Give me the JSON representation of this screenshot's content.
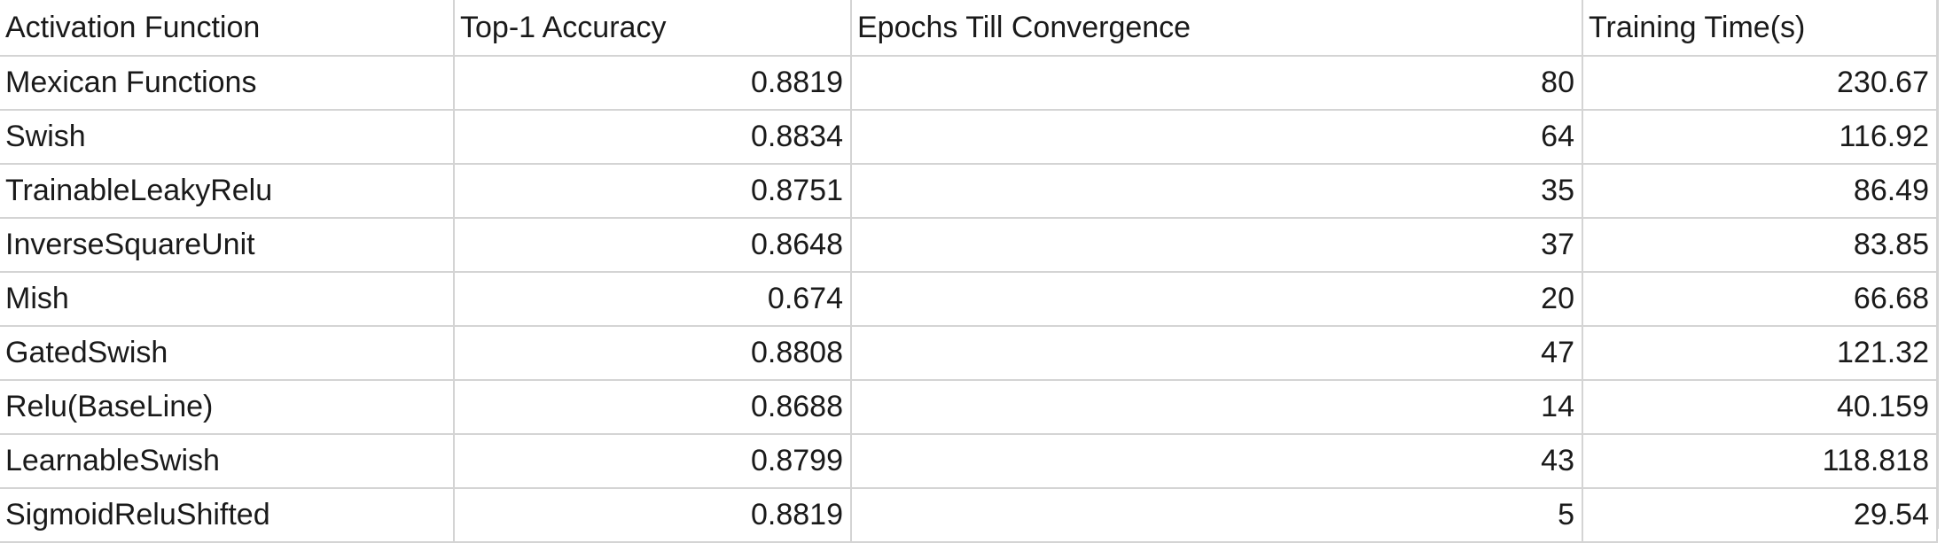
{
  "sheet": {
    "headers": [
      "Activation Function",
      "Top-1 Accuracy",
      "Epochs Till Convergence",
      "Training Time(s)"
    ],
    "rows": [
      [
        "Mexican Functions",
        "0.8819",
        "80",
        "230.67"
      ],
      [
        "Swish",
        "0.8834",
        "64",
        "116.92"
      ],
      [
        "TrainableLeakyRelu",
        "0.8751",
        "35",
        "86.49"
      ],
      [
        "InverseSquareUnit",
        "0.8648",
        "37",
        "83.85"
      ],
      [
        "Mish",
        "0.674",
        "20",
        "66.68"
      ],
      [
        "GatedSwish",
        "0.8808",
        "47",
        "121.32"
      ],
      [
        "Relu(BaseLine)",
        "0.8688",
        "14",
        "40.159"
      ],
      [
        "LearnableSwish",
        "0.8799",
        "43",
        "118.818"
      ],
      [
        "SigmoidReluShifted",
        "0.8819",
        "5",
        "29.54"
      ]
    ]
  }
}
